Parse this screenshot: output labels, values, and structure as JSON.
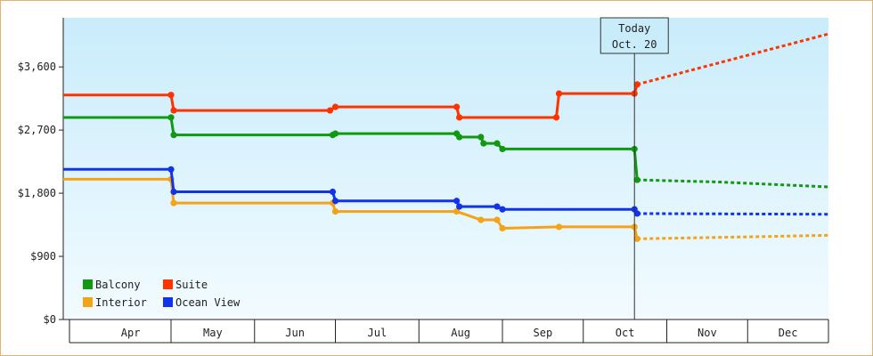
{
  "chart_data": {
    "type": "line",
    "title": "",
    "xlabel": "",
    "ylabel": "",
    "ylim": [
      0,
      4300
    ],
    "xlim": [
      "2024-03-22",
      "2024-12-31"
    ],
    "x_ticks": [
      {
        "label": "Apr",
        "start": "2024-04-01",
        "end": "2024-05-01"
      },
      {
        "label": "May",
        "start": "2024-05-01",
        "end": "2024-06-01"
      },
      {
        "label": "Jun",
        "start": "2024-06-01",
        "end": "2024-07-01"
      },
      {
        "label": "Jul",
        "start": "2024-07-01",
        "end": "2024-08-01"
      },
      {
        "label": "Aug",
        "start": "2024-08-01",
        "end": "2024-09-01"
      },
      {
        "label": "Sep",
        "start": "2024-09-01",
        "end": "2024-10-01"
      },
      {
        "label": "Oct",
        "start": "2024-10-01",
        "end": "2024-11-01"
      },
      {
        "label": "Nov",
        "start": "2024-11-01",
        "end": "2024-12-01"
      },
      {
        "label": "Dec",
        "start": "2024-12-01",
        "end": "2024-12-31"
      }
    ],
    "y_ticks": [
      {
        "value": 0,
        "label": "$0"
      },
      {
        "value": 900,
        "label": "$900"
      },
      {
        "value": 1800,
        "label": "$1,800"
      },
      {
        "value": 2700,
        "label": "$2,700"
      },
      {
        "value": 3600,
        "label": "$3,600"
      }
    ],
    "today_marker": {
      "line1": "Today",
      "line2": "Oct. 20",
      "date": "2024-10-20"
    },
    "legend": {
      "position": "bottom-left"
    },
    "series": [
      {
        "name": "Balcony",
        "color": "#119911",
        "points": [
          {
            "date": "2024-03-22",
            "value": 2880
          },
          {
            "date": "2024-05-01",
            "value": 2880
          },
          {
            "date": "2024-05-02",
            "value": 2630
          },
          {
            "date": "2024-06-30",
            "value": 2630
          },
          {
            "date": "2024-07-01",
            "value": 2650
          },
          {
            "date": "2024-08-15",
            "value": 2650
          },
          {
            "date": "2024-08-16",
            "value": 2600
          },
          {
            "date": "2024-08-24",
            "value": 2600
          },
          {
            "date": "2024-08-25",
            "value": 2510
          },
          {
            "date": "2024-08-30",
            "value": 2510
          },
          {
            "date": "2024-09-01",
            "value": 2430
          },
          {
            "date": "2024-10-20",
            "value": 2430
          },
          {
            "date": "2024-10-21",
            "value": 1990
          }
        ],
        "forecast": [
          {
            "date": "2024-10-21",
            "value": 1990
          },
          {
            "date": "2024-11-20",
            "value": 1960
          },
          {
            "date": "2024-12-31",
            "value": 1890
          }
        ]
      },
      {
        "name": "Suite",
        "color": "#ff3300",
        "points": [
          {
            "date": "2024-03-22",
            "value": 3200
          },
          {
            "date": "2024-05-01",
            "value": 3200
          },
          {
            "date": "2024-05-02",
            "value": 2980
          },
          {
            "date": "2024-06-29",
            "value": 2980
          },
          {
            "date": "2024-07-01",
            "value": 3030
          },
          {
            "date": "2024-08-15",
            "value": 3030
          },
          {
            "date": "2024-08-16",
            "value": 2880
          },
          {
            "date": "2024-09-21",
            "value": 2880
          },
          {
            "date": "2024-09-22",
            "value": 3220
          },
          {
            "date": "2024-10-20",
            "value": 3220
          },
          {
            "date": "2024-10-21",
            "value": 3350
          }
        ],
        "forecast": [
          {
            "date": "2024-10-21",
            "value": 3350
          },
          {
            "date": "2024-12-31",
            "value": 4070
          }
        ]
      },
      {
        "name": "Interior",
        "color": "#f5a316",
        "points": [
          {
            "date": "2024-03-22",
            "value": 2000
          },
          {
            "date": "2024-05-01",
            "value": 2000
          },
          {
            "date": "2024-05-02",
            "value": 1660
          },
          {
            "date": "2024-06-30",
            "value": 1660
          },
          {
            "date": "2024-07-01",
            "value": 1540
          },
          {
            "date": "2024-08-15",
            "value": 1540
          },
          {
            "date": "2024-08-24",
            "value": 1420
          },
          {
            "date": "2024-08-30",
            "value": 1420
          },
          {
            "date": "2024-09-01",
            "value": 1300
          },
          {
            "date": "2024-09-22",
            "value": 1320
          },
          {
            "date": "2024-10-20",
            "value": 1320
          },
          {
            "date": "2024-10-21",
            "value": 1150
          }
        ],
        "forecast": [
          {
            "date": "2024-10-21",
            "value": 1150
          },
          {
            "date": "2024-11-20",
            "value": 1170
          },
          {
            "date": "2024-12-31",
            "value": 1200
          }
        ]
      },
      {
        "name": "Ocean View",
        "color": "#1133ee",
        "points": [
          {
            "date": "2024-03-22",
            "value": 2140
          },
          {
            "date": "2024-05-01",
            "value": 2140
          },
          {
            "date": "2024-05-02",
            "value": 1820
          },
          {
            "date": "2024-06-30",
            "value": 1820
          },
          {
            "date": "2024-07-01",
            "value": 1690
          },
          {
            "date": "2024-08-15",
            "value": 1690
          },
          {
            "date": "2024-08-16",
            "value": 1610
          },
          {
            "date": "2024-08-30",
            "value": 1610
          },
          {
            "date": "2024-09-01",
            "value": 1570
          },
          {
            "date": "2024-10-20",
            "value": 1570
          },
          {
            "date": "2024-10-21",
            "value": 1510
          }
        ],
        "forecast": [
          {
            "date": "2024-10-21",
            "value": 1510
          },
          {
            "date": "2024-12-31",
            "value": 1500
          }
        ]
      }
    ]
  }
}
